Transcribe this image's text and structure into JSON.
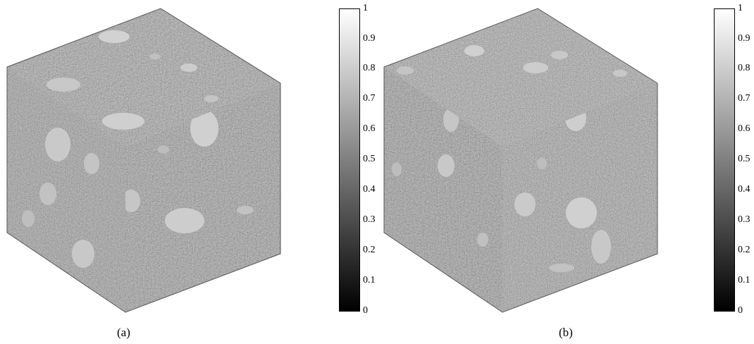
{
  "panels": [
    {
      "caption": "(a)",
      "colorbar_ticks": [
        "1",
        "0.9",
        "0.8",
        "0.7",
        "0.6",
        "0.5",
        "0.4",
        "0.3",
        "0.2",
        "0.1",
        "0"
      ],
      "colormap": [
        "#ffffff",
        "#000000"
      ]
    },
    {
      "caption": "(b)",
      "colorbar_ticks": [
        "1",
        "0.9",
        "0.8",
        "0.7",
        "0.6",
        "0.5",
        "0.4",
        "0.3",
        "0.2",
        "0.1",
        "0"
      ],
      "colormap": [
        "#ffffff",
        "#000000"
      ]
    }
  ]
}
